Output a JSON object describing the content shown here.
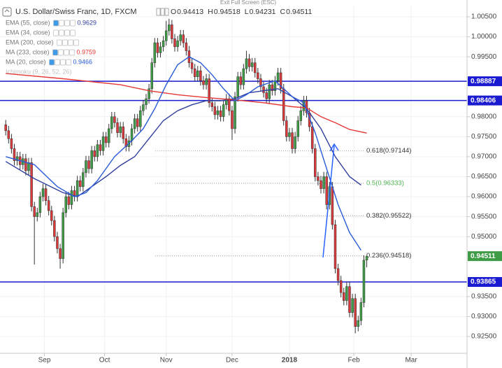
{
  "chart_data": {
    "type": "candlestick",
    "title": "U.S. Dollar/Swiss Franc, 1D, FXCM",
    "toolbar_text": "Exit Full Screen (ESC)",
    "ohlc_keys": [
      "O",
      "H",
      "L",
      "C"
    ],
    "up_color": "#3f9c46",
    "down_color": "#d9393c",
    "candles": [
      [
        0.978,
        0.9792,
        0.9753,
        0.9765
      ],
      [
        0.9765,
        0.9777,
        0.9733,
        0.9745
      ],
      [
        0.9745,
        0.9757,
        0.9708,
        0.972
      ],
      [
        0.972,
        0.9732,
        0.9678,
        0.969
      ],
      [
        0.969,
        0.9712,
        0.9678,
        0.97
      ],
      [
        0.97,
        0.9712,
        0.9668,
        0.968
      ],
      [
        0.968,
        0.9707,
        0.9668,
        0.9695
      ],
      [
        0.9695,
        0.9707,
        0.9653,
        0.9665
      ],
      [
        0.9665,
        0.9697,
        0.9653,
        0.9685
      ],
      [
        0.9685,
        0.9697,
        0.9563,
        0.9575
      ],
      [
        0.9575,
        0.9587,
        0.943,
        0.955
      ],
      [
        0.955,
        0.9572,
        0.9538,
        0.956
      ],
      [
        0.956,
        0.9612,
        0.9548,
        0.96
      ],
      [
        0.96,
        0.9632,
        0.9588,
        0.962
      ],
      [
        0.962,
        0.9632,
        0.9578,
        0.959
      ],
      [
        0.959,
        0.9602,
        0.9553,
        0.9565
      ],
      [
        0.9565,
        0.9577,
        0.9528,
        0.954
      ],
      [
        0.954,
        0.9552,
        0.9488,
        0.95
      ],
      [
        0.95,
        0.9512,
        0.9458,
        0.947
      ],
      [
        0.947,
        0.9482,
        0.942,
        0.9445
      ],
      [
        0.9445,
        0.9572,
        0.9433,
        0.956
      ],
      [
        0.956,
        0.9612,
        0.9548,
        0.96
      ],
      [
        0.96,
        0.9612,
        0.9568,
        0.958
      ],
      [
        0.958,
        0.9627,
        0.9568,
        0.9615
      ],
      [
        0.9615,
        0.9627,
        0.9588,
        0.96
      ],
      [
        0.96,
        0.9652,
        0.9588,
        0.964
      ],
      [
        0.964,
        0.9652,
        0.9613,
        0.9625
      ],
      [
        0.9625,
        0.9672,
        0.9613,
        0.966
      ],
      [
        0.966,
        0.9702,
        0.9648,
        0.969
      ],
      [
        0.969,
        0.9702,
        0.9658,
        0.967
      ],
      [
        0.967,
        0.9727,
        0.9658,
        0.9715
      ],
      [
        0.9715,
        0.9727,
        0.9688,
        0.97
      ],
      [
        0.97,
        0.9742,
        0.9688,
        0.973
      ],
      [
        0.973,
        0.9742,
        0.9703,
        0.9715
      ],
      [
        0.9715,
        0.9762,
        0.9703,
        0.975
      ],
      [
        0.975,
        0.9762,
        0.9723,
        0.9735
      ],
      [
        0.9735,
        0.9782,
        0.9723,
        0.977
      ],
      [
        0.977,
        0.9812,
        0.9758,
        0.98
      ],
      [
        0.98,
        0.9812,
        0.9773,
        0.9785
      ],
      [
        0.9785,
        0.9797,
        0.9748,
        0.976
      ],
      [
        0.976,
        0.9787,
        0.9748,
        0.9775
      ],
      [
        0.9775,
        0.9787,
        0.9733,
        0.9745
      ],
      [
        0.9745,
        0.9757,
        0.9713,
        0.9725
      ],
      [
        0.9725,
        0.9752,
        0.9713,
        0.974
      ],
      [
        0.974,
        0.9782,
        0.9728,
        0.977
      ],
      [
        0.977,
        0.9807,
        0.9758,
        0.9795
      ],
      [
        0.9795,
        0.9807,
        0.9763,
        0.9775
      ],
      [
        0.9775,
        0.9827,
        0.9763,
        0.9815
      ],
      [
        0.9815,
        0.9842,
        0.9803,
        0.983
      ],
      [
        0.983,
        0.9857,
        0.9818,
        0.9845
      ],
      [
        0.9845,
        0.9882,
        0.9833,
        0.987
      ],
      [
        0.987,
        0.9947,
        0.9858,
        0.9935
      ],
      [
        0.9935,
        0.9997,
        0.9923,
        0.9985
      ],
      [
        0.9985,
        0.9997,
        0.9948,
        0.996
      ],
      [
        0.996,
        0.9987,
        0.9948,
        0.9975
      ],
      [
        0.9975,
        1.0002,
        0.9963,
        0.999
      ],
      [
        0.999,
        1.004,
        0.9978,
        1.0015
      ],
      [
        1.0015,
        1.0045,
        1.0003,
        1.003
      ],
      [
        1.003,
        1.0042,
        0.9983,
        0.9995
      ],
      [
        0.9995,
        1.0007,
        0.9963,
        0.9975
      ],
      [
        0.9975,
        1.0002,
        0.9963,
        0.999
      ],
      [
        0.999,
        1.0017,
        0.9978,
        1.0005
      ],
      [
        1.0005,
        1.0017,
        0.9973,
        0.9985
      ],
      [
        0.9985,
        0.9997,
        0.9953,
        0.9965
      ],
      [
        0.9965,
        0.9977,
        0.9923,
        0.9935
      ],
      [
        0.9935,
        0.9947,
        0.9908,
        0.992
      ],
      [
        0.992,
        0.9932,
        0.9888,
        0.99
      ],
      [
        0.99,
        0.9927,
        0.9888,
        0.9915
      ],
      [
        0.9915,
        0.9927,
        0.9878,
        0.989
      ],
      [
        0.989,
        0.9902,
        0.9868,
        0.988
      ],
      [
        0.988,
        0.9907,
        0.9868,
        0.9895
      ],
      [
        0.9895,
        0.9907,
        0.9823,
        0.9835
      ],
      [
        0.9835,
        0.9847,
        0.9813,
        0.9825
      ],
      [
        0.9825,
        0.9837,
        0.9793,
        0.9805
      ],
      [
        0.9805,
        0.9827,
        0.9793,
        0.9815
      ],
      [
        0.9815,
        0.9827,
        0.9788,
        0.98
      ],
      [
        0.98,
        0.9842,
        0.9788,
        0.983
      ],
      [
        0.983,
        0.9857,
        0.9818,
        0.9845
      ],
      [
        0.9845,
        0.9857,
        0.9803,
        0.9815
      ],
      [
        0.9815,
        0.9827,
        0.9742,
        0.977
      ],
      [
        0.977,
        0.9862,
        0.9758,
        0.985
      ],
      [
        0.985,
        0.9912,
        0.9838,
        0.99
      ],
      [
        0.99,
        0.9912,
        0.9868,
        0.988
      ],
      [
        0.988,
        0.9932,
        0.9868,
        0.992
      ],
      [
        0.992,
        0.9965,
        0.9908,
        0.9945
      ],
      [
        0.9945,
        0.9957,
        0.9913,
        0.9925
      ],
      [
        0.9925,
        0.9947,
        0.9913,
        0.9935
      ],
      [
        0.9935,
        0.9947,
        0.9898,
        0.991
      ],
      [
        0.991,
        0.9922,
        0.9883,
        0.9895
      ],
      [
        0.9895,
        0.9907,
        0.9863,
        0.9875
      ],
      [
        0.9875,
        0.9887,
        0.9848,
        0.986
      ],
      [
        0.986,
        0.9872,
        0.9833,
        0.9845
      ],
      [
        0.9845,
        0.9892,
        0.9833,
        0.988
      ],
      [
        0.988,
        0.9892,
        0.9853,
        0.9865
      ],
      [
        0.9865,
        0.9902,
        0.9853,
        0.989
      ],
      [
        0.989,
        0.9922,
        0.9878,
        0.991
      ],
      [
        0.991,
        0.9922,
        0.9858,
        0.987
      ],
      [
        0.987,
        0.9882,
        0.9778,
        0.979
      ],
      [
        0.979,
        0.9802,
        0.9738,
        0.975
      ],
      [
        0.975,
        0.9772,
        0.9738,
        0.976
      ],
      [
        0.976,
        0.9772,
        0.9708,
        0.972
      ],
      [
        0.972,
        0.9762,
        0.9708,
        0.975
      ],
      [
        0.975,
        0.9802,
        0.9738,
        0.979
      ],
      [
        0.979,
        0.9827,
        0.9778,
        0.9815
      ],
      [
        0.9815,
        0.9852,
        0.9803,
        0.984
      ],
      [
        0.984,
        0.9852,
        0.9798,
        0.981
      ],
      [
        0.981,
        0.9822,
        0.9763,
        0.9775
      ],
      [
        0.9775,
        0.9787,
        0.9708,
        0.972
      ],
      [
        0.972,
        0.9732,
        0.9638,
        0.965
      ],
      [
        0.965,
        0.9662,
        0.9628,
        0.964
      ],
      [
        0.964,
        0.9652,
        0.9608,
        0.962
      ],
      [
        0.962,
        0.9662,
        0.9608,
        0.965
      ],
      [
        0.965,
        0.9662,
        0.9568,
        0.958
      ],
      [
        0.958,
        0.9637,
        0.9568,
        0.9625
      ],
      [
        0.9625,
        0.9637,
        0.9518,
        0.953
      ],
      [
        0.953,
        0.9542,
        0.9408,
        0.942
      ],
      [
        0.942,
        0.9432,
        0.9378,
        0.939
      ],
      [
        0.939,
        0.9402,
        0.9348,
        0.936
      ],
      [
        0.936,
        0.9372,
        0.9328,
        0.934
      ],
      [
        0.934,
        0.9387,
        0.9328,
        0.9375
      ],
      [
        0.9375,
        0.9387,
        0.9298,
        0.931
      ],
      [
        0.931,
        0.9357,
        0.9298,
        0.9345
      ],
      [
        0.9345,
        0.9357,
        0.9258,
        0.9275
      ],
      [
        0.9275,
        0.9302,
        0.9263,
        0.929
      ],
      [
        0.929,
        0.9347,
        0.9278,
        0.9335
      ],
      [
        0.9335,
        0.9453,
        0.9323,
        0.9441
      ],
      [
        0.94413,
        0.94518,
        0.94231,
        0.94511
      ]
    ],
    "series": [
      {
        "name": "EMA (55, close)",
        "color": "#2f3f9e",
        "x": [
          0,
          10,
          20,
          25,
          30,
          35,
          40,
          45,
          50,
          55,
          60,
          65,
          70,
          75,
          80,
          85,
          90,
          95,
          100,
          105,
          110,
          115,
          120,
          124
        ],
        "values": [
          0.9688,
          0.9645,
          0.961,
          0.96,
          0.9625,
          0.965,
          0.9678,
          0.97,
          0.9745,
          0.979,
          0.9815,
          0.983,
          0.984,
          0.984,
          0.9845,
          0.986,
          0.9865,
          0.987,
          0.985,
          0.982,
          0.977,
          0.97,
          0.965,
          0.9629
        ]
      },
      {
        "name": "EMA (34, close)",
        "color": "#9aa5b8",
        "x": [],
        "values": []
      },
      {
        "name": "EMA (200, close)",
        "color": "#9aa5b8",
        "x": [],
        "values": []
      },
      {
        "name": "MA (233, close)",
        "color": "#e53935",
        "x": [
          0,
          20,
          40,
          50,
          60,
          70,
          80,
          90,
          100,
          105,
          110,
          115,
          120,
          126
        ],
        "values": [
          0.9908,
          0.9895,
          0.988,
          0.9865,
          0.9855,
          0.9848,
          0.9842,
          0.9835,
          0.9825,
          0.9822,
          0.98,
          0.9785,
          0.9768,
          0.9759
        ]
      },
      {
        "name": "MA (20, close)",
        "color": "#2a5bd7",
        "x": [
          0,
          10,
          18,
          24,
          28,
          32,
          38,
          44,
          48,
          52,
          56,
          60,
          64,
          68,
          72,
          76,
          80,
          84,
          88,
          94,
          100,
          104,
          108,
          112,
          116,
          120,
          124
        ],
        "values": [
          0.97,
          0.968,
          0.9625,
          0.96,
          0.961,
          0.964,
          0.97,
          0.974,
          0.977,
          0.982,
          0.988,
          0.993,
          0.995,
          0.9935,
          0.9905,
          0.987,
          0.984,
          0.9855,
          0.9875,
          0.989,
          0.985,
          0.9835,
          0.976,
          0.967,
          0.958,
          0.951,
          0.9466
        ]
      },
      {
        "name": "Ichimoku (9, 26, 52, 26)",
        "color": "#9aa5b8",
        "x": [],
        "values": []
      }
    ],
    "hlines": [
      {
        "value": 0.98887,
        "color": "#1a1ad0"
      },
      {
        "value": 0.98406,
        "color": "#1a1ad0"
      },
      {
        "value": 0.93865,
        "color": "#1a1ad0"
      }
    ],
    "fib_levels": [
      {
        "value": 0.97144,
        "label": "0.618(0.97144)",
        "color": "#333333"
      },
      {
        "value": 0.96333,
        "label": "0.5(0.96333)",
        "color": "#4caf50"
      },
      {
        "value": 0.95522,
        "label": "0.382(0.95522)",
        "color": "#333333"
      },
      {
        "value": 0.94518,
        "label": "0.236(0.94518)",
        "color": "#333333"
      }
    ],
    "last_price_color": "#3f9c46",
    "xlim": [
      -2,
      161
    ],
    "xticks": [
      {
        "value": 13.5,
        "label": "Sep"
      },
      {
        "value": 34.5,
        "label": "Oct"
      },
      {
        "value": 56,
        "label": "Nov"
      },
      {
        "value": 79,
        "label": "Dec"
      },
      {
        "value": 99,
        "label": "2018"
      },
      {
        "value": 121.5,
        "label": "Feb"
      },
      {
        "value": 141.5,
        "label": "Mar"
      }
    ],
    "ylim": [
      0.9208,
      1.0078
    ],
    "yticks": [
      {
        "value": 1.005,
        "label": "1.00500"
      },
      {
        "value": 1.0,
        "label": "1.00000"
      },
      {
        "value": 0.995,
        "label": "0.99500"
      },
      {
        "value": 0.98,
        "label": "0.98000"
      },
      {
        "value": 0.975,
        "label": "0.97500"
      },
      {
        "value": 0.97,
        "label": "0.97000"
      },
      {
        "value": 0.965,
        "label": "0.96500"
      },
      {
        "value": 0.96,
        "label": "0.96000"
      },
      {
        "value": 0.955,
        "label": "0.95500"
      },
      {
        "value": 0.95,
        "label": "0.95000"
      },
      {
        "value": 0.935,
        "label": "0.93500"
      },
      {
        "value": 0.93,
        "label": "0.93000"
      },
      {
        "value": 0.925,
        "label": "0.92500"
      }
    ],
    "grid": true
  }
}
